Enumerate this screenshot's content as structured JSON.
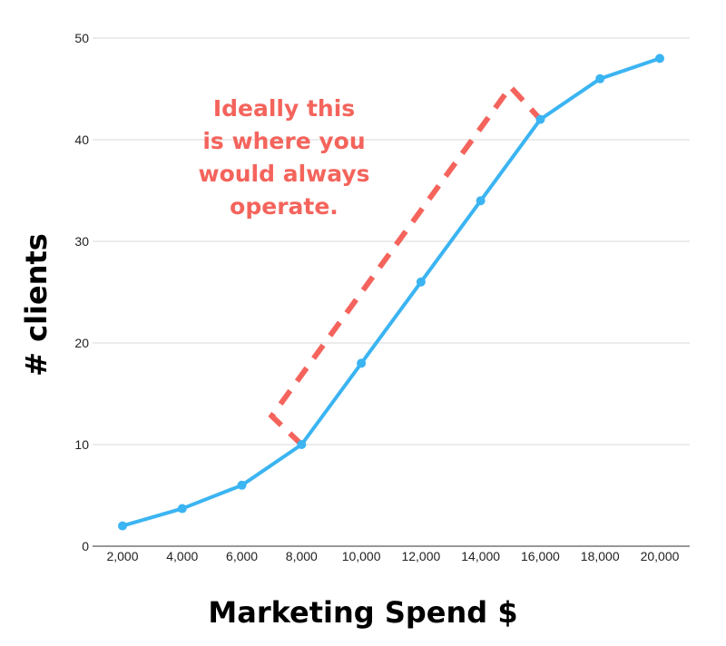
{
  "chart_data": {
    "type": "line",
    "title": "",
    "xlabel": "Marketing Spend $",
    "ylabel": "# clients",
    "x": [
      2000,
      4000,
      6000,
      8000,
      10000,
      12000,
      14000,
      16000,
      18000,
      20000
    ],
    "x_tick_labels": [
      "2,000",
      "4,000",
      "6,000",
      "8,000",
      "10,000",
      "12,000",
      "14,000",
      "16,000",
      "18,000",
      "20,000"
    ],
    "y_ticks": [
      0,
      10,
      20,
      30,
      40,
      50
    ],
    "ylim": [
      0,
      50
    ],
    "grid": true,
    "legend": "none",
    "series": [
      {
        "values": [
          2,
          3.7,
          6,
          10,
          18,
          26,
          34,
          42,
          46,
          48
        ],
        "color": "#3bb4f2"
      }
    ],
    "annotation": {
      "lines": [
        "Ideally this",
        "is where you",
        "would always",
        "operate."
      ],
      "color": "#f4645c",
      "region": {
        "description_points": [
          [
            8000,
            10
          ],
          [
            7000,
            12.8
          ],
          [
            15000,
            45.2
          ],
          [
            16000,
            42
          ]
        ]
      }
    }
  }
}
